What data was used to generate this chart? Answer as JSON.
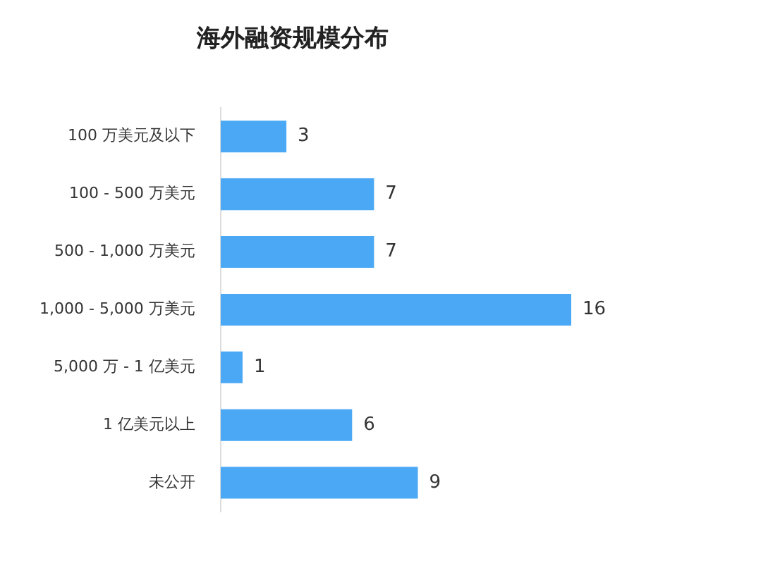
{
  "chart_data": {
    "type": "bar",
    "orientation": "horizontal",
    "title": "海外融资规模分布",
    "categories": [
      "100 万美元及以下",
      "100 - 500 万美元",
      "500 - 1,000 万美元",
      "1,000 - 5,000 万美元",
      "5,000 万 - 1 亿美元",
      "1 亿美元以上",
      "未公开"
    ],
    "values": [
      3,
      7,
      7,
      16,
      1,
      6,
      9
    ],
    "color": "#4aa8f5",
    "data_labels": true,
    "legend": false
  }
}
